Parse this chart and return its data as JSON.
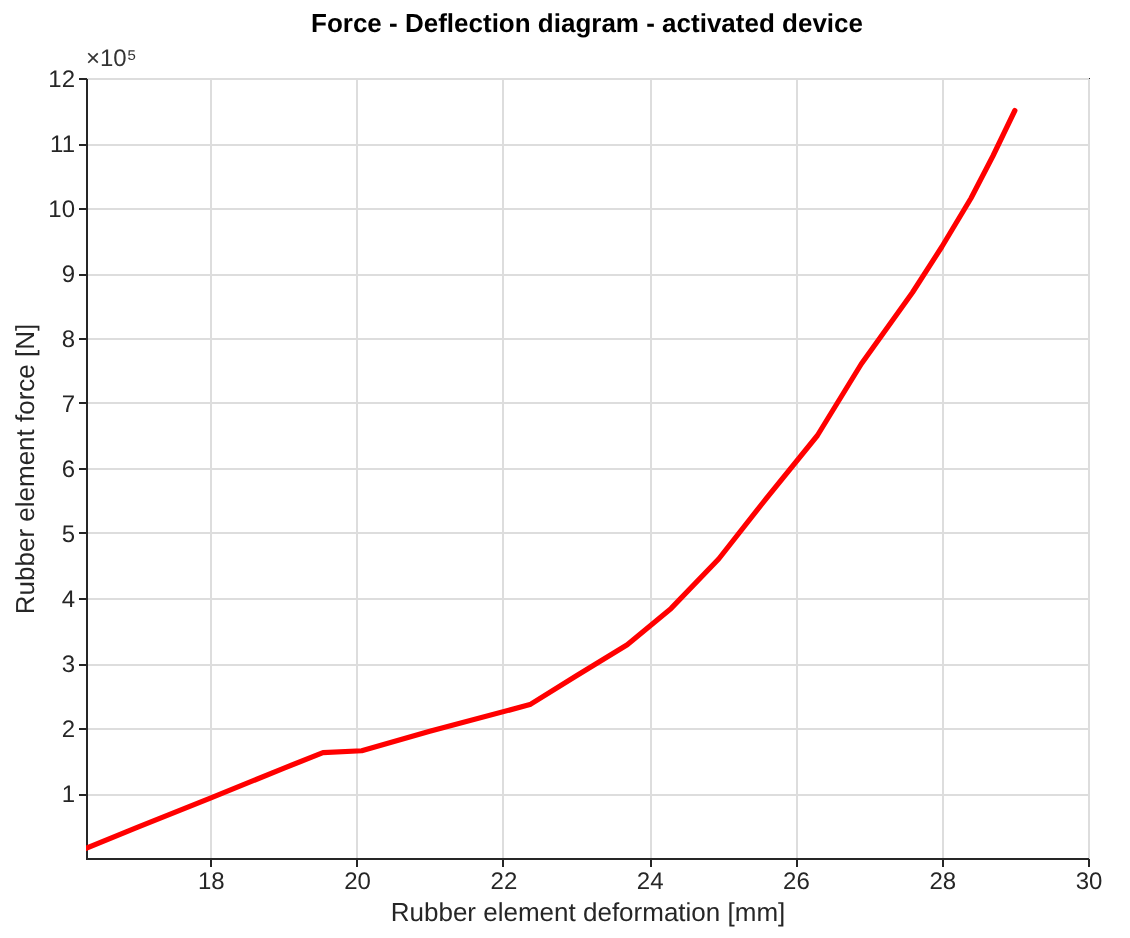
{
  "chart_data": {
    "type": "line",
    "title": "Force - Deflection diagram - activated device",
    "xlabel": "Rubber element deformation [mm]",
    "ylabel": "Rubber element force [N]",
    "annotations": [
      "×10⁵"
    ],
    "x": [
      16.3,
      17.0,
      18.0,
      19.0,
      19.54,
      20.07,
      21.0,
      22.37,
      23.0,
      23.7,
      24.3,
      24.95,
      25.6,
      26.3,
      26.9,
      27.6,
      28.0,
      28.4,
      28.7,
      29.0
    ],
    "series": [
      {
        "color": "#ff0000",
        "values": [
          0.15,
          0.47,
          0.92,
          1.38,
          1.62,
          1.65,
          1.95,
          2.36,
          2.8,
          3.28,
          3.84,
          4.6,
          5.53,
          6.5,
          7.6,
          8.7,
          9.4,
          10.15,
          10.8,
          11.5
        ]
      }
    ],
    "xlim": [
      16.3,
      30
    ],
    "xticks": [
      18,
      20,
      22,
      24,
      26,
      28,
      30
    ],
    "ylim": [
      0,
      12
    ],
    "yticks": [
      1,
      2,
      3,
      4,
      5,
      6,
      7,
      8,
      9,
      10,
      11,
      12
    ],
    "grid": true,
    "marker": "none",
    "line_style": "solid"
  }
}
